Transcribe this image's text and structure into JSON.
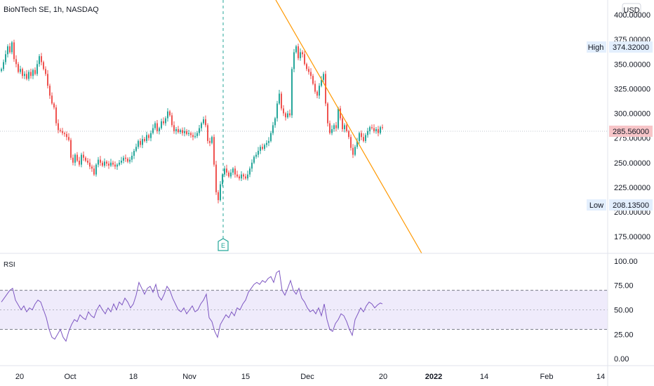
{
  "header": {
    "title": "BioNTech SE, 1h, NASDAQ",
    "currency": "USD"
  },
  "chart_data": {
    "type": "candlestick",
    "title": "BioNTech SE, 1h, NASDAQ",
    "currency": "USD",
    "price_axis": {
      "ylim": [
        158,
        415
      ],
      "ticks": [
        {
          "value": 175,
          "label": "175.00000"
        },
        {
          "value": 200,
          "label": "200.00000"
        },
        {
          "value": 225,
          "label": "225.00000"
        },
        {
          "value": 250,
          "label": "250.00000"
        },
        {
          "value": 275,
          "label": "275.00000"
        },
        {
          "value": 300,
          "label": "300.00000"
        },
        {
          "value": 325,
          "label": "325.00000"
        },
        {
          "value": 350,
          "label": "350.00000"
        },
        {
          "value": 375,
          "label": "375.00000"
        },
        {
          "value": 400,
          "label": "400.00000"
        }
      ]
    },
    "time_axis": {
      "labels": [
        {
          "label": "20",
          "bold": false
        },
        {
          "label": "Oct",
          "bold": false
        },
        {
          "label": "18",
          "bold": false
        },
        {
          "label": "Nov",
          "bold": false
        },
        {
          "label": "15",
          "bold": false
        },
        {
          "label": "Dec",
          "bold": false
        },
        {
          "label": "20",
          "bold": false
        },
        {
          "label": "2022",
          "bold": true
        },
        {
          "label": "14",
          "bold": false
        },
        {
          "label": "Feb",
          "bold": false
        },
        {
          "label": "14",
          "bold": false
        }
      ]
    },
    "markers": {
      "high": {
        "label": "High",
        "value": 374.32,
        "text": "374.32000"
      },
      "low": {
        "label": "Low",
        "value": 208.135,
        "text": "208.13500"
      },
      "last": {
        "value": 285.56,
        "text": "285.56000"
      }
    },
    "earnings_marker": {
      "label": "E"
    },
    "trendline": {
      "note": "descending"
    },
    "price_series": [
      [
        0,
        345
      ],
      [
        3,
        352
      ],
      [
        6,
        360
      ],
      [
        9,
        368
      ],
      [
        12,
        362
      ],
      [
        15,
        372
      ],
      [
        18,
        355
      ],
      [
        21,
        350
      ],
      [
        24,
        342
      ],
      [
        27,
        345
      ],
      [
        30,
        338
      ],
      [
        33,
        340
      ],
      [
        36,
        335
      ],
      [
        39,
        342
      ],
      [
        42,
        338
      ],
      [
        45,
        344
      ],
      [
        48,
        340
      ],
      [
        51,
        350
      ],
      [
        54,
        358
      ],
      [
        57,
        352
      ],
      [
        60,
        345
      ],
      [
        63,
        340
      ],
      [
        66,
        328
      ],
      [
        69,
        318
      ],
      [
        72,
        310
      ],
      [
        75,
        306
      ],
      [
        78,
        290
      ],
      [
        81,
        283
      ],
      [
        84,
        282
      ],
      [
        87,
        280
      ],
      [
        90,
        279
      ],
      [
        93,
        276
      ],
      [
        96,
        273
      ],
      [
        99,
        255
      ],
      [
        102,
        250
      ],
      [
        105,
        258
      ],
      [
        108,
        252
      ],
      [
        111,
        248
      ],
      [
        114,
        258
      ],
      [
        117,
        255
      ],
      [
        120,
        252
      ],
      [
        123,
        250
      ],
      [
        126,
        246
      ],
      [
        129,
        244
      ],
      [
        132,
        238
      ],
      [
        135,
        248
      ],
      [
        138,
        253
      ],
      [
        141,
        250
      ],
      [
        144,
        247
      ],
      [
        147,
        251
      ],
      [
        150,
        249
      ],
      [
        153,
        247
      ],
      [
        156,
        250
      ],
      [
        159,
        248
      ],
      [
        162,
        246
      ],
      [
        165,
        248
      ],
      [
        168,
        250
      ],
      [
        171,
        252
      ],
      [
        174,
        255
      ],
      [
        177,
        254
      ],
      [
        180,
        251
      ],
      [
        183,
        253
      ],
      [
        186,
        257
      ],
      [
        189,
        262
      ],
      [
        192,
        266
      ],
      [
        195,
        272
      ],
      [
        198,
        268
      ],
      [
        201,
        274
      ],
      [
        204,
        272
      ],
      [
        207,
        278
      ],
      [
        210,
        275
      ],
      [
        213,
        280
      ],
      [
        216,
        285
      ],
      [
        219,
        290
      ],
      [
        222,
        282
      ],
      [
        225,
        285
      ],
      [
        228,
        292
      ],
      [
        231,
        290
      ],
      [
        234,
        295
      ],
      [
        237,
        302
      ],
      [
        240,
        298
      ],
      [
        243,
        288
      ],
      [
        246,
        282
      ],
      [
        249,
        284
      ],
      [
        252,
        281
      ],
      [
        255,
        283
      ],
      [
        258,
        280
      ],
      [
        261,
        282
      ],
      [
        264,
        279
      ],
      [
        267,
        280
      ],
      [
        270,
        278
      ],
      [
        273,
        276
      ],
      [
        276,
        277
      ],
      [
        279,
        280
      ],
      [
        282,
        285
      ],
      [
        285,
        290
      ],
      [
        288,
        294
      ],
      [
        291,
        288
      ],
      [
        294,
        272
      ],
      [
        297,
        270
      ],
      [
        300,
        276
      ],
      [
        303,
        248
      ],
      [
        306,
        220
      ],
      [
        309,
        212
      ],
      [
        312,
        228
      ],
      [
        315,
        238
      ],
      [
        318,
        244
      ],
      [
        321,
        240
      ],
      [
        324,
        236
      ],
      [
        327,
        240
      ],
      [
        330,
        244
      ],
      [
        333,
        238
      ],
      [
        336,
        236
      ],
      [
        339,
        234
      ],
      [
        342,
        238
      ],
      [
        345,
        236
      ],
      [
        348,
        234
      ],
      [
        351,
        238
      ],
      [
        354,
        244
      ],
      [
        357,
        250
      ],
      [
        360,
        256
      ],
      [
        363,
        258
      ],
      [
        366,
        262
      ],
      [
        369,
        266
      ],
      [
        372,
        264
      ],
      [
        375,
        268
      ],
      [
        378,
        270
      ],
      [
        381,
        272
      ],
      [
        384,
        280
      ],
      [
        387,
        288
      ],
      [
        390,
        295
      ],
      [
        393,
        310
      ],
      [
        396,
        320
      ],
      [
        399,
        305
      ],
      [
        402,
        300
      ],
      [
        405,
        296
      ],
      [
        408,
        300
      ],
      [
        411,
        298
      ],
      [
        414,
        345
      ],
      [
        417,
        362
      ],
      [
        420,
        368
      ],
      [
        423,
        356
      ],
      [
        426,
        362
      ],
      [
        429,
        360
      ],
      [
        432,
        350
      ],
      [
        435,
        345
      ],
      [
        438,
        342
      ],
      [
        441,
        338
      ],
      [
        444,
        330
      ],
      [
        447,
        322
      ],
      [
        450,
        318
      ],
      [
        453,
        328
      ],
      [
        456,
        334
      ],
      [
        459,
        340
      ],
      [
        462,
        310
      ],
      [
        465,
        290
      ],
      [
        468,
        280
      ],
      [
        471,
        284
      ],
      [
        474,
        288
      ],
      [
        477,
        285
      ],
      [
        480,
        305
      ],
      [
        483,
        295
      ],
      [
        486,
        284
      ],
      [
        489,
        288
      ],
      [
        492,
        282
      ],
      [
        495,
        276
      ],
      [
        498,
        265
      ],
      [
        501,
        258
      ],
      [
        504,
        266
      ],
      [
        507,
        272
      ],
      [
        510,
        280
      ],
      [
        513,
        276
      ],
      [
        516,
        272
      ],
      [
        519,
        278
      ],
      [
        522,
        282
      ],
      [
        525,
        286
      ],
      [
        528,
        285
      ],
      [
        531,
        282
      ],
      [
        534,
        284
      ],
      [
        537,
        280
      ],
      [
        540,
        286
      ],
      [
        543,
        285.56
      ]
    ]
  },
  "rsi": {
    "label": "RSI",
    "ylim": [
      -7,
      107
    ],
    "upper_band": 70,
    "lower_band": 30,
    "mid": 50,
    "ticks": [
      {
        "value": 0,
        "label": "0.00"
      },
      {
        "value": 25,
        "label": "25.00"
      },
      {
        "value": 50,
        "label": "50.00"
      },
      {
        "value": 75,
        "label": "75.00"
      },
      {
        "value": 100,
        "label": "100.00"
      }
    ],
    "series": [
      [
        0,
        58
      ],
      [
        4,
        62
      ],
      [
        8,
        66
      ],
      [
        12,
        70
      ],
      [
        16,
        72
      ],
      [
        20,
        60
      ],
      [
        24,
        55
      ],
      [
        28,
        50
      ],
      [
        32,
        54
      ],
      [
        36,
        48
      ],
      [
        40,
        52
      ],
      [
        44,
        50
      ],
      [
        48,
        56
      ],
      [
        52,
        60
      ],
      [
        56,
        58
      ],
      [
        60,
        50
      ],
      [
        64,
        42
      ],
      [
        68,
        30
      ],
      [
        72,
        22
      ],
      [
        76,
        20
      ],
      [
        80,
        25
      ],
      [
        84,
        30
      ],
      [
        88,
        22
      ],
      [
        92,
        18
      ],
      [
        96,
        28
      ],
      [
        100,
        35
      ],
      [
        104,
        40
      ],
      [
        108,
        38
      ],
      [
        112,
        45
      ],
      [
        116,
        42
      ],
      [
        120,
        40
      ],
      [
        124,
        48
      ],
      [
        128,
        44
      ],
      [
        132,
        42
      ],
      [
        136,
        50
      ],
      [
        140,
        55
      ],
      [
        144,
        50
      ],
      [
        148,
        46
      ],
      [
        152,
        52
      ],
      [
        156,
        48
      ],
      [
        160,
        56
      ],
      [
        164,
        50
      ],
      [
        168,
        58
      ],
      [
        172,
        55
      ],
      [
        176,
        62
      ],
      [
        180,
        58
      ],
      [
        184,
        52
      ],
      [
        188,
        56
      ],
      [
        192,
        65
      ],
      [
        196,
        78
      ],
      [
        200,
        72
      ],
      [
        204,
        66
      ],
      [
        208,
        72
      ],
      [
        212,
        74
      ],
      [
        216,
        68
      ],
      [
        220,
        76
      ],
      [
        224,
        64
      ],
      [
        228,
        60
      ],
      [
        232,
        66
      ],
      [
        236,
        74
      ],
      [
        240,
        70
      ],
      [
        244,
        62
      ],
      [
        248,
        56
      ],
      [
        252,
        50
      ],
      [
        256,
        48
      ],
      [
        260,
        52
      ],
      [
        264,
        46
      ],
      [
        268,
        50
      ],
      [
        272,
        54
      ],
      [
        276,
        48
      ],
      [
        280,
        50
      ],
      [
        284,
        56
      ],
      [
        288,
        60
      ],
      [
        292,
        66
      ],
      [
        296,
        42
      ],
      [
        300,
        38
      ],
      [
        304,
        28
      ],
      [
        308,
        22
      ],
      [
        312,
        35
      ],
      [
        316,
        40
      ],
      [
        320,
        45
      ],
      [
        324,
        42
      ],
      [
        328,
        48
      ],
      [
        332,
        44
      ],
      [
        336,
        52
      ],
      [
        340,
        50
      ],
      [
        344,
        56
      ],
      [
        348,
        60
      ],
      [
        352,
        68
      ],
      [
        356,
        72
      ],
      [
        360,
        76
      ],
      [
        364,
        78
      ],
      [
        368,
        76
      ],
      [
        372,
        80
      ],
      [
        376,
        78
      ],
      [
        380,
        82
      ],
      [
        384,
        84
      ],
      [
        388,
        78
      ],
      [
        392,
        88
      ],
      [
        396,
        90
      ],
      [
        400,
        70
      ],
      [
        404,
        65
      ],
      [
        408,
        72
      ],
      [
        412,
        80
      ],
      [
        416,
        70
      ],
      [
        420,
        66
      ],
      [
        424,
        72
      ],
      [
        428,
        62
      ],
      [
        432,
        58
      ],
      [
        436,
        52
      ],
      [
        440,
        48
      ],
      [
        444,
        50
      ],
      [
        448,
        46
      ],
      [
        452,
        52
      ],
      [
        456,
        44
      ],
      [
        460,
        56
      ],
      [
        464,
        40
      ],
      [
        468,
        30
      ],
      [
        472,
        28
      ],
      [
        476,
        36
      ],
      [
        480,
        40
      ],
      [
        484,
        46
      ],
      [
        488,
        44
      ],
      [
        492,
        38
      ],
      [
        496,
        30
      ],
      [
        500,
        24
      ],
      [
        504,
        40
      ],
      [
        508,
        46
      ],
      [
        512,
        52
      ],
      [
        516,
        48
      ],
      [
        520,
        54
      ],
      [
        524,
        58
      ],
      [
        528,
        56
      ],
      [
        532,
        52
      ],
      [
        536,
        55
      ],
      [
        540,
        57
      ],
      [
        543,
        56
      ]
    ]
  }
}
